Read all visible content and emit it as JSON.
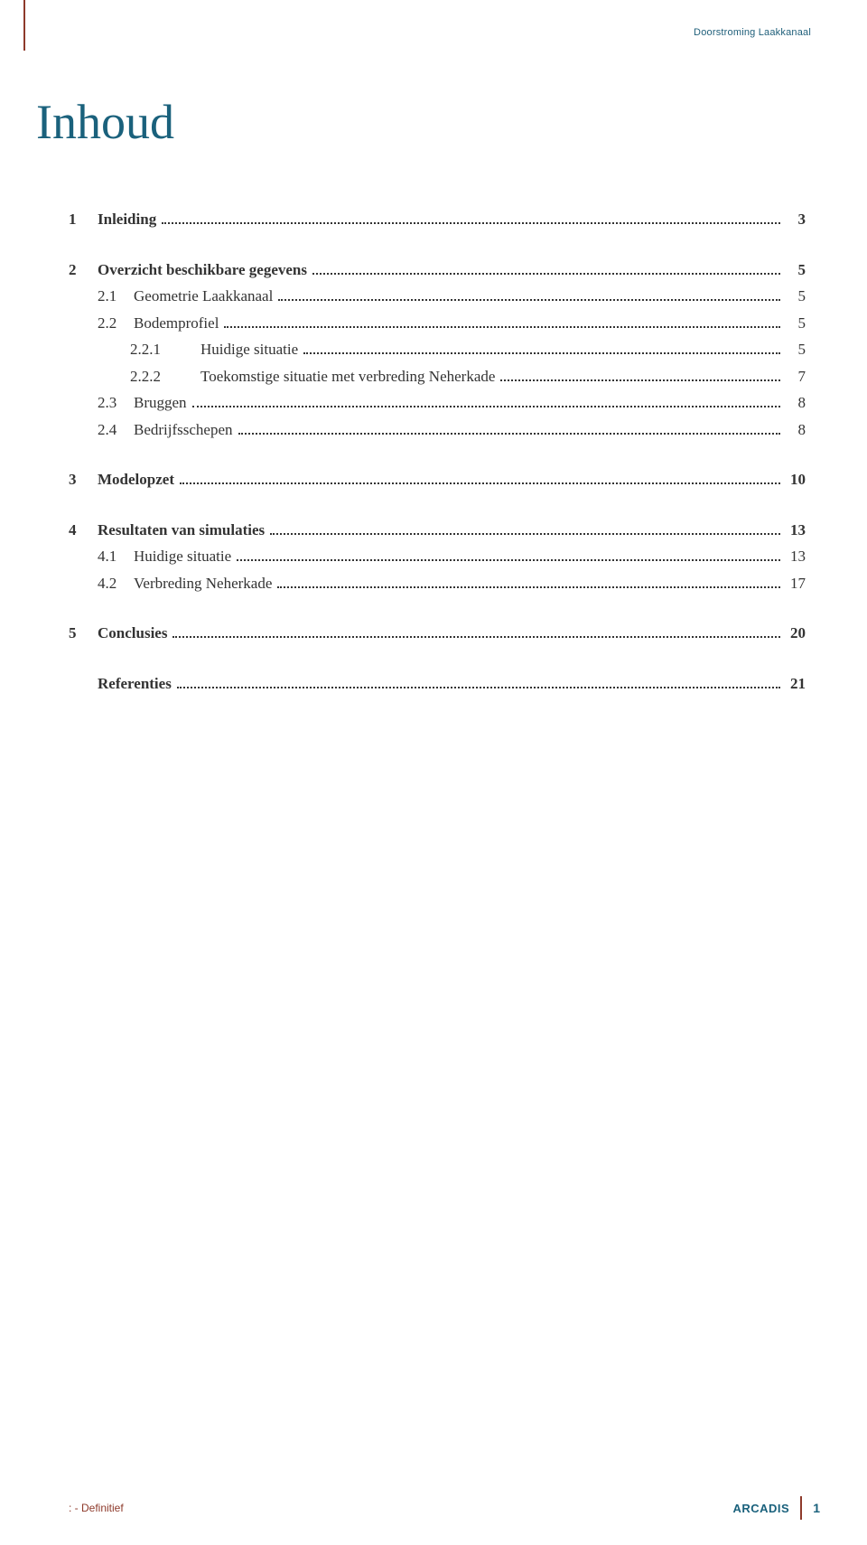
{
  "header": {
    "doc_label": "Doorstroming Laakkanaal"
  },
  "title": "Inhoud",
  "toc": [
    {
      "type": "row",
      "bold": true,
      "level": 0,
      "num": "1",
      "label": "Inleiding",
      "page": "3"
    },
    {
      "type": "spacer"
    },
    {
      "type": "row",
      "bold": true,
      "level": 0,
      "num": "2",
      "label": "Overzicht beschikbare gegevens",
      "page": "5"
    },
    {
      "type": "row",
      "bold": false,
      "level": 1,
      "num": "2.1",
      "label": "Geometrie Laakkanaal",
      "page": "5"
    },
    {
      "type": "row",
      "bold": false,
      "level": 1,
      "num": "2.2",
      "label": "Bodemprofiel",
      "page": "5"
    },
    {
      "type": "row",
      "bold": false,
      "level": 2,
      "num": "2.2.1",
      "label": "Huidige situatie",
      "page": "5"
    },
    {
      "type": "row",
      "bold": false,
      "level": 2,
      "num": "2.2.2",
      "label": "Toekomstige situatie met verbreding Neherkade",
      "page": "7"
    },
    {
      "type": "row",
      "bold": false,
      "level": 1,
      "num": "2.3",
      "label": "Bruggen",
      "page": "8"
    },
    {
      "type": "row",
      "bold": false,
      "level": 1,
      "num": "2.4",
      "label": "Bedrijfsschepen",
      "page": "8"
    },
    {
      "type": "spacer"
    },
    {
      "type": "row",
      "bold": true,
      "level": 0,
      "num": "3",
      "label": "Modelopzet",
      "page": "10"
    },
    {
      "type": "spacer"
    },
    {
      "type": "row",
      "bold": true,
      "level": 0,
      "num": "4",
      "label": "Resultaten van simulaties",
      "page": "13"
    },
    {
      "type": "row",
      "bold": false,
      "level": 1,
      "num": "4.1",
      "label": "Huidige situatie",
      "page": "13"
    },
    {
      "type": "row",
      "bold": false,
      "level": 1,
      "num": "4.2",
      "label": "Verbreding Neherkade",
      "page": "17"
    },
    {
      "type": "spacer"
    },
    {
      "type": "row",
      "bold": true,
      "level": 0,
      "num": "5",
      "label": "Conclusies",
      "page": "20"
    },
    {
      "type": "spacer"
    },
    {
      "type": "row",
      "bold": true,
      "level": 0,
      "num": "",
      "label": "Referenties",
      "page": "21"
    }
  ],
  "footer": {
    "left": ":  - Definitief",
    "brand": "ARCADIS",
    "page": "1"
  },
  "colors": {
    "accent_teal": "#1a617c",
    "accent_rust": "#8e3a2b",
    "text": "#333333",
    "background": "#ffffff"
  }
}
